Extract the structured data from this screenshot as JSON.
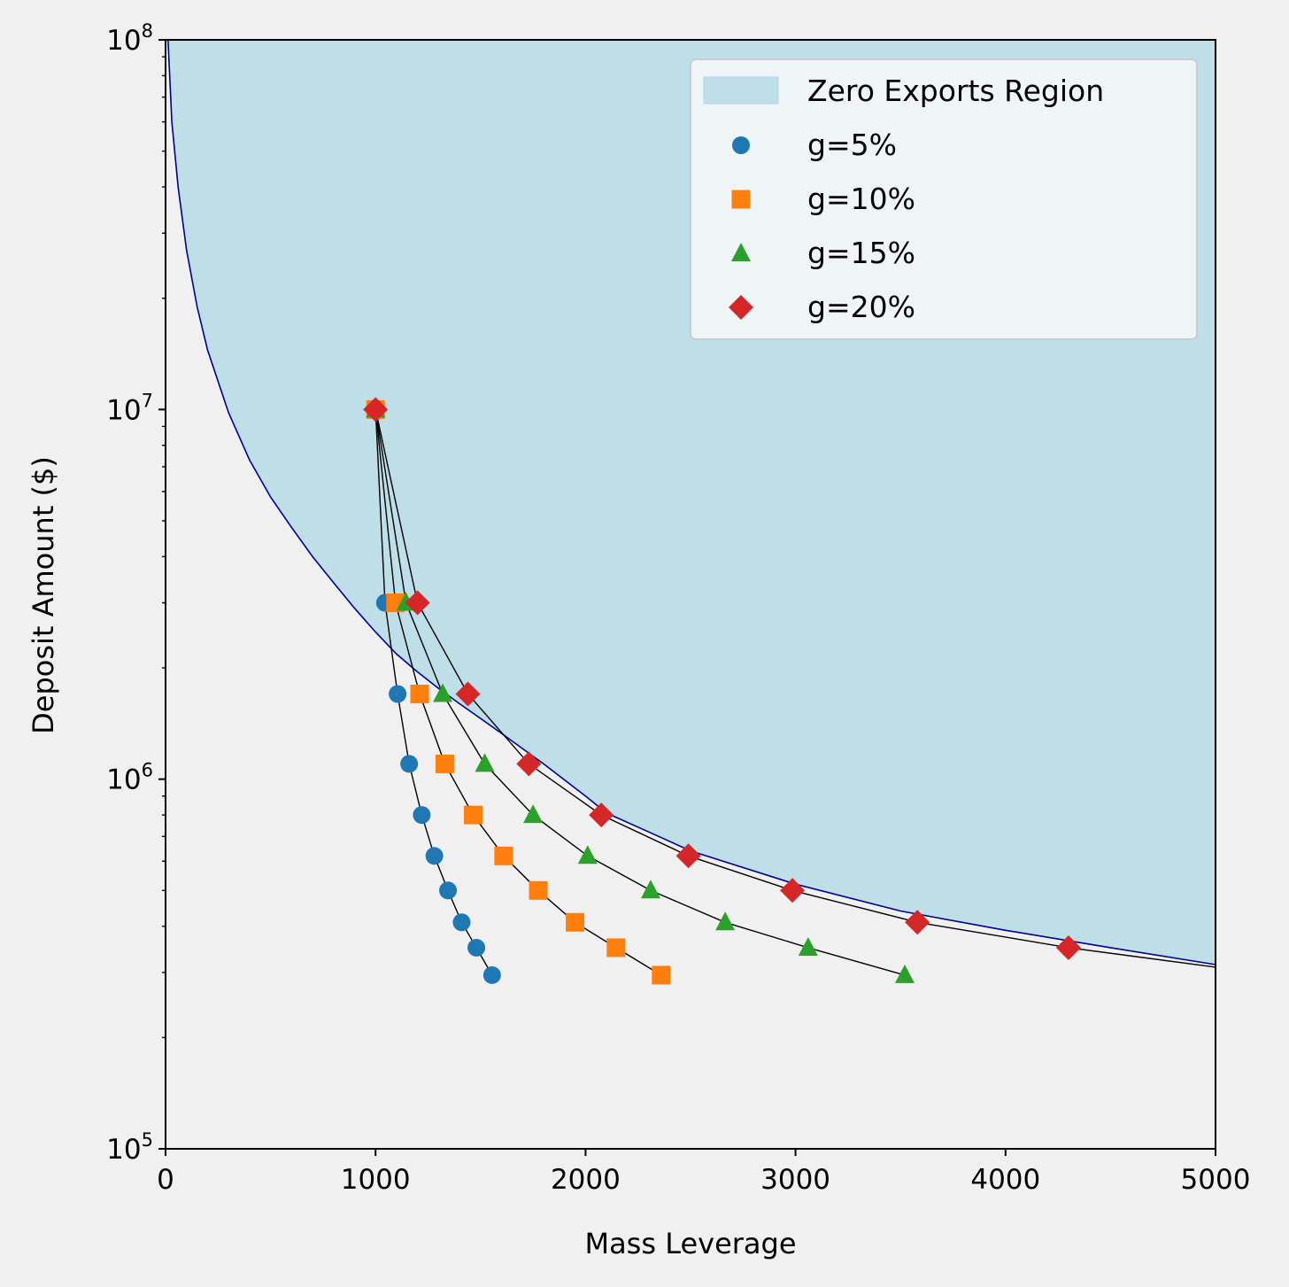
{
  "chart_data": {
    "type": "scatter",
    "xlabel": "Mass Leverage",
    "ylabel": "Deposit Amount ($)",
    "xlim": [
      0,
      5000
    ],
    "ylim": [
      100000,
      100000000
    ],
    "y_scale": "log",
    "x_ticks": [
      "0",
      "1000",
      "2000",
      "3000",
      "4000",
      "5000"
    ],
    "y_ticks": [
      {
        "value": 100000,
        "base": "10",
        "exp": "5"
      },
      {
        "value": 1000000,
        "base": "10",
        "exp": "6"
      },
      {
        "value": 10000000,
        "base": "10",
        "exp": "7"
      },
      {
        "value": 100000000,
        "base": "10",
        "exp": "8"
      }
    ],
    "legend_position": "top-right",
    "region": {
      "name": "Zero Exports Region",
      "color": "#add8e6",
      "boundary_color": "#00008b",
      "boundary": [
        [
          12,
          100000000
        ],
        [
          30,
          60000000
        ],
        [
          60,
          40000000
        ],
        [
          100,
          27000000
        ],
        [
          150,
          19000000
        ],
        [
          200,
          14500000
        ],
        [
          300,
          9800000
        ],
        [
          400,
          7300000
        ],
        [
          500,
          5800000
        ],
        [
          600,
          4800000
        ],
        [
          700,
          4000000
        ],
        [
          800,
          3400000
        ],
        [
          900,
          2900000
        ],
        [
          1000,
          2500000
        ],
        [
          1100,
          2180000
        ],
        [
          1200,
          1950000
        ],
        [
          1300,
          1760000
        ],
        [
          1400,
          1600000
        ],
        [
          1500,
          1460000
        ],
        [
          1600,
          1330000
        ],
        [
          1800,
          1100000
        ],
        [
          2000,
          900000
        ],
        [
          2100,
          810000
        ],
        [
          2300,
          720000
        ],
        [
          2500,
          640000
        ],
        [
          3000,
          520000
        ],
        [
          3500,
          440000
        ],
        [
          4000,
          390000
        ],
        [
          4500,
          350000
        ],
        [
          5000,
          315000
        ]
      ]
    },
    "series": [
      {
        "name": "g=5%",
        "marker": "circle",
        "color": "#1f77b4",
        "points": [
          [
            1000,
            10000000
          ],
          [
            1045,
            3000000
          ],
          [
            1105,
            1700000
          ],
          [
            1160,
            1100000
          ],
          [
            1220,
            800000
          ],
          [
            1280,
            620000
          ],
          [
            1345,
            500000
          ],
          [
            1410,
            410000
          ],
          [
            1480,
            350000
          ],
          [
            1555,
            295000
          ]
        ]
      },
      {
        "name": "g=10%",
        "marker": "square",
        "color": "#ff7f0e",
        "points": [
          [
            1000,
            10000000
          ],
          [
            1095,
            3000000
          ],
          [
            1210,
            1700000
          ],
          [
            1330,
            1100000
          ],
          [
            1465,
            800000
          ],
          [
            1610,
            620000
          ],
          [
            1775,
            500000
          ],
          [
            1950,
            410000
          ],
          [
            2145,
            350000
          ],
          [
            2360,
            295000
          ]
        ]
      },
      {
        "name": "g=15%",
        "marker": "triangle",
        "color": "#2ca02c",
        "points": [
          [
            1000,
            10000000
          ],
          [
            1145,
            3000000
          ],
          [
            1320,
            1700000
          ],
          [
            1520,
            1100000
          ],
          [
            1750,
            800000
          ],
          [
            2010,
            620000
          ],
          [
            2310,
            500000
          ],
          [
            2665,
            410000
          ],
          [
            3060,
            350000
          ],
          [
            3520,
            295000
          ]
        ]
      },
      {
        "name": "g=20%",
        "marker": "diamond",
        "color": "#d62728",
        "points": [
          [
            1000,
            10000000
          ],
          [
            1200,
            3000000
          ],
          [
            1440,
            1700000
          ],
          [
            1730,
            1100000
          ],
          [
            2075,
            800000
          ],
          [
            2490,
            620000
          ],
          [
            2985,
            500000
          ],
          [
            3580,
            410000
          ],
          [
            4300,
            350000
          ]
        ],
        "line_extends_to": [
          5000,
          310000
        ]
      }
    ]
  }
}
